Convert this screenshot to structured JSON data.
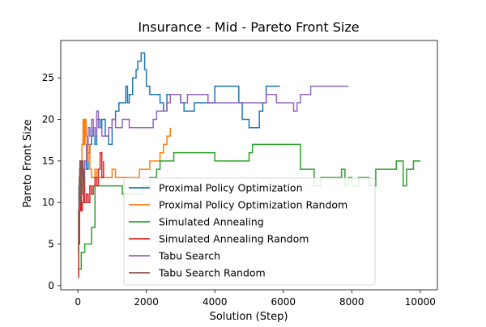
{
  "chart_data": {
    "type": "line",
    "title": "Insurance - Mid - Pareto Front Size",
    "xlabel": "Solution (Step)",
    "ylabel": "Pareto Front Size",
    "xlim": [
      -500,
      10500
    ],
    "ylim": [
      -0.5,
      29.5
    ],
    "xticks": [
      0,
      2000,
      4000,
      6000,
      8000,
      10000
    ],
    "yticks": [
      0,
      5,
      10,
      15,
      20,
      25
    ],
    "grid": false,
    "legend_position": "lower-center",
    "series": [
      {
        "name": "Proximal Policy Optimization",
        "color": "#1f77b4",
        "points": [
          [
            0,
            8
          ],
          [
            30,
            12
          ],
          [
            60,
            14
          ],
          [
            100,
            12
          ],
          [
            150,
            14
          ],
          [
            200,
            15
          ],
          [
            250,
            14
          ],
          [
            300,
            16
          ],
          [
            350,
            17
          ],
          [
            400,
            18
          ],
          [
            450,
            19
          ],
          [
            500,
            17
          ],
          [
            550,
            20
          ],
          [
            650,
            19
          ],
          [
            700,
            20
          ],
          [
            800,
            18
          ],
          [
            900,
            17
          ],
          [
            1000,
            20
          ],
          [
            1100,
            21
          ],
          [
            1200,
            22
          ],
          [
            1300,
            22
          ],
          [
            1400,
            24
          ],
          [
            1450,
            22
          ],
          [
            1500,
            23
          ],
          [
            1600,
            25
          ],
          [
            1700,
            26
          ],
          [
            1750,
            27
          ],
          [
            1850,
            28
          ],
          [
            1950,
            26
          ],
          [
            2000,
            24
          ],
          [
            2100,
            23
          ],
          [
            2400,
            22
          ],
          [
            2500,
            21
          ],
          [
            2600,
            23
          ],
          [
            2800,
            23
          ],
          [
            3000,
            22
          ],
          [
            3100,
            21
          ],
          [
            3400,
            22
          ],
          [
            3600,
            22
          ],
          [
            3800,
            22
          ],
          [
            4000,
            24
          ],
          [
            4500,
            24
          ],
          [
            4700,
            22
          ],
          [
            4800,
            20
          ],
          [
            5000,
            19
          ],
          [
            5300,
            21
          ],
          [
            5400,
            22
          ],
          [
            5500,
            24
          ],
          [
            5900,
            24
          ]
        ]
      },
      {
        "name": "Proximal Policy Optimization Random",
        "color": "#ff7f0e",
        "points": [
          [
            0,
            5
          ],
          [
            40,
            10
          ],
          [
            80,
            14
          ],
          [
            120,
            17
          ],
          [
            150,
            20
          ],
          [
            180,
            17
          ],
          [
            210,
            20
          ],
          [
            240,
            18
          ],
          [
            270,
            15
          ],
          [
            300,
            17
          ],
          [
            350,
            14
          ],
          [
            400,
            13
          ],
          [
            500,
            14
          ],
          [
            550,
            13
          ],
          [
            700,
            13
          ],
          [
            900,
            13
          ],
          [
            1000,
            14
          ],
          [
            1100,
            13
          ],
          [
            1300,
            13
          ],
          [
            1500,
            13
          ],
          [
            1700,
            13
          ],
          [
            1800,
            14
          ],
          [
            2000,
            14
          ],
          [
            2100,
            15
          ],
          [
            2400,
            16
          ],
          [
            2500,
            17
          ],
          [
            2600,
            18
          ],
          [
            2700,
            19
          ]
        ]
      },
      {
        "name": "Simulated Annealing",
        "color": "#2ca02c",
        "points": [
          [
            0,
            2
          ],
          [
            100,
            4
          ],
          [
            200,
            5
          ],
          [
            400,
            7
          ],
          [
            500,
            12
          ],
          [
            700,
            12
          ],
          [
            900,
            12
          ],
          [
            1200,
            12
          ],
          [
            1300,
            11
          ],
          [
            1500,
            11
          ],
          [
            1600,
            11
          ],
          [
            1800,
            11
          ],
          [
            1900,
            12
          ],
          [
            2100,
            13
          ],
          [
            2300,
            14
          ],
          [
            2400,
            15
          ],
          [
            2600,
            15
          ],
          [
            2800,
            16
          ],
          [
            3500,
            16
          ],
          [
            4000,
            15
          ],
          [
            4300,
            15
          ],
          [
            4700,
            15
          ],
          [
            5000,
            16
          ],
          [
            5100,
            17
          ],
          [
            6400,
            17
          ],
          [
            6500,
            14
          ],
          [
            6800,
            14
          ],
          [
            6900,
            12
          ],
          [
            7100,
            13
          ],
          [
            7600,
            13
          ],
          [
            7700,
            14
          ],
          [
            7800,
            12
          ],
          [
            7900,
            13
          ],
          [
            8000,
            12
          ],
          [
            8200,
            13
          ],
          [
            8500,
            12
          ],
          [
            8700,
            14
          ],
          [
            9000,
            14
          ],
          [
            9300,
            15
          ],
          [
            9500,
            12
          ],
          [
            9600,
            14
          ],
          [
            9800,
            15
          ],
          [
            10000,
            15
          ]
        ]
      },
      {
        "name": "Simulated Annealing Random",
        "color": "#d62728",
        "points": [
          [
            0,
            1
          ],
          [
            25,
            5
          ],
          [
            50,
            9
          ],
          [
            80,
            11
          ],
          [
            100,
            9
          ],
          [
            130,
            10
          ],
          [
            160,
            12
          ],
          [
            200,
            10
          ],
          [
            250,
            11
          ],
          [
            300,
            10
          ],
          [
            350,
            12
          ],
          [
            400,
            11
          ],
          [
            450,
            12
          ],
          [
            500,
            13
          ],
          [
            550,
            12
          ],
          [
            600,
            14
          ],
          [
            650,
            16
          ],
          [
            700,
            13
          ],
          [
            750,
            15
          ]
        ]
      },
      {
        "name": "Tabu Search",
        "color": "#9467bd",
        "points": [
          [
            0,
            9
          ],
          [
            50,
            14
          ],
          [
            100,
            15
          ],
          [
            150,
            13
          ],
          [
            200,
            15
          ],
          [
            250,
            17
          ],
          [
            300,
            19
          ],
          [
            350,
            18
          ],
          [
            400,
            20
          ],
          [
            450,
            19
          ],
          [
            500,
            18
          ],
          [
            550,
            21
          ],
          [
            600,
            19
          ],
          [
            700,
            18
          ],
          [
            900,
            19
          ],
          [
            1000,
            20
          ],
          [
            1100,
            19
          ],
          [
            1300,
            20
          ],
          [
            1500,
            19
          ],
          [
            2000,
            19
          ],
          [
            2200,
            20
          ],
          [
            2300,
            21
          ],
          [
            2600,
            22
          ],
          [
            2700,
            23
          ],
          [
            3000,
            22
          ],
          [
            3200,
            23
          ],
          [
            3500,
            23
          ],
          [
            3800,
            22
          ],
          [
            4000,
            22
          ],
          [
            4500,
            22
          ],
          [
            5000,
            22
          ],
          [
            5500,
            23
          ],
          [
            5800,
            22
          ],
          [
            6000,
            22
          ],
          [
            6300,
            21
          ],
          [
            6400,
            22
          ],
          [
            6500,
            23
          ],
          [
            6800,
            24
          ],
          [
            7900,
            24
          ]
        ]
      },
      {
        "name": "Tabu Search Random",
        "color": "#8c564b",
        "points": [
          [
            0,
            4
          ],
          [
            20,
            9
          ],
          [
            40,
            13
          ],
          [
            60,
            15
          ],
          [
            80,
            10
          ],
          [
            100,
            13
          ],
          [
            120,
            15
          ],
          [
            140,
            11
          ],
          [
            160,
            14
          ],
          [
            180,
            12
          ],
          [
            200,
            13
          ]
        ]
      }
    ]
  }
}
